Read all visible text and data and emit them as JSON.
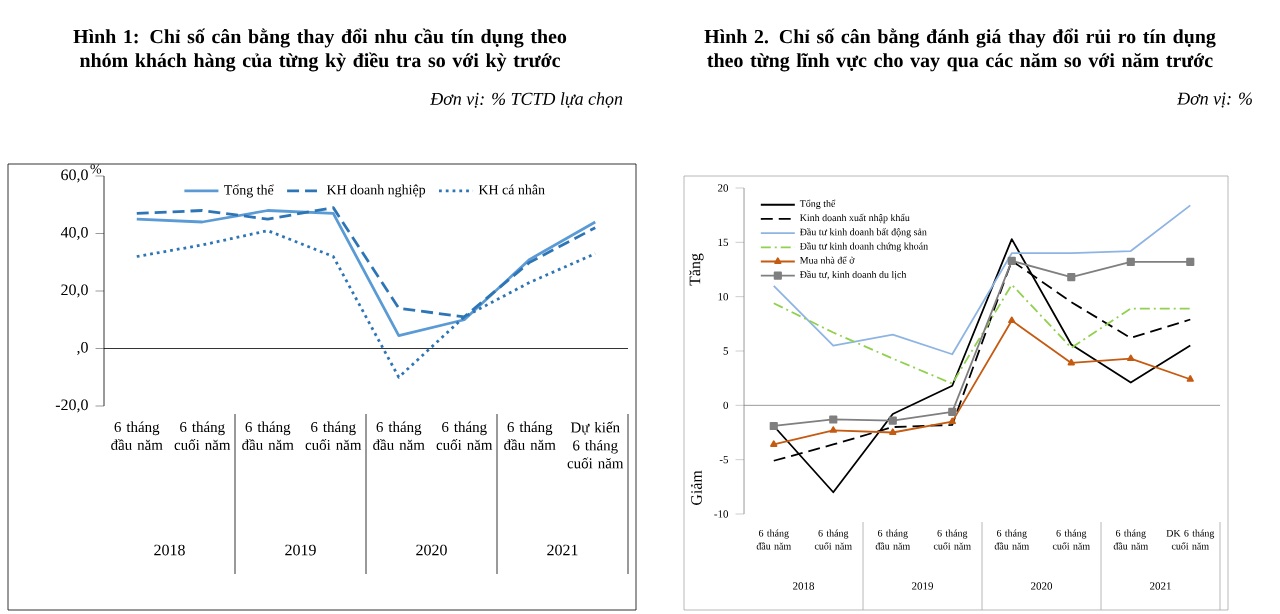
{
  "chart_data": [
    {
      "type": "line",
      "title": "Hình 1:  Chỉ số cân bằng thay đổi nhu cầu tín dụng theo nhóm khách hàng của từng kỳ điều tra so với kỳ trước",
      "subtitle": "Đơn vị: % TCTD lựa chọn",
      "ylabel": "%",
      "categories": [
        "6 tháng đầu năm",
        "6 tháng cuối năm",
        "6 tháng đầu năm",
        "6 tháng cuối năm",
        "6 tháng đầu năm",
        "6 tháng cuối năm",
        "6 tháng đầu năm",
        "Dự kiến 6 tháng cuối năm"
      ],
      "series": [
        {
          "name": "Tổng thể",
          "color": "#5b9bd5",
          "line_style": "solid",
          "values": [
            45,
            44,
            48,
            47,
            4.5,
            10,
            31,
            44
          ]
        },
        {
          "name": "KH doanh nghiệp",
          "color": "#2e75b6",
          "line_style": "dashed",
          "values": [
            47,
            48,
            45,
            49,
            14,
            11,
            30,
            42
          ]
        },
        {
          "name": "KH cá nhân",
          "color": "#2e75b6",
          "line_style": "dotted",
          "values": [
            32,
            36,
            41,
            32,
            -10,
            11,
            23,
            33
          ]
        }
      ],
      "ylim": [
        -20,
        60
      ],
      "yticks": [
        {
          "value": -20,
          "label": "-20,0"
        },
        {
          "value": 0,
          "label": ",0"
        },
        {
          "value": 20,
          "label": "20,0"
        },
        {
          "value": 40,
          "label": "40,0"
        },
        {
          "value": 60,
          "label": "60,0"
        }
      ],
      "legend": "top",
      "grid": false,
      "ref_lines": [
        {
          "axis": "y",
          "value": 0
        }
      ],
      "annotations": [
        "2018",
        "2019",
        "2020",
        "2021"
      ]
    },
    {
      "type": "line",
      "title": "Hình 2. Chỉ số cân bằng đánh giá thay đổi rủi ro tín dụng theo từng lĩnh vực cho vay qua các năm so với năm trước",
      "subtitle": "Đơn vị: %",
      "categories": [
        "6 tháng đầu năm",
        "6 tháng cuối năm",
        "6 tháng đầu năm",
        "6 tháng cuối năm",
        "6 tháng đầu năm",
        "6 tháng cuối năm",
        "6 tháng đầu năm",
        "DK 6 tháng cuối năm"
      ],
      "series": [
        {
          "name": "Tổng thể",
          "color": "#000000",
          "line_style": "solid",
          "values": [
            -1.9,
            -8.0,
            -0.8,
            1.8,
            15.3,
            5.6,
            2.1,
            5.5
          ]
        },
        {
          "name": "Kinh doanh xuất nhập khẩu",
          "color": "#000000",
          "line_style": "dashed",
          "values": [
            -5.1,
            -3.6,
            -2.0,
            -1.8,
            13.3,
            9.5,
            6.2,
            7.9
          ]
        },
        {
          "name": "Đầu tư kinh doanh bất động sản",
          "color": "#8eb4e3",
          "line_style": "solid",
          "values": [
            11.0,
            5.5,
            6.5,
            4.7,
            14.0,
            14.0,
            14.2,
            18.4
          ]
        },
        {
          "name": "Đầu tư kinh doanh chứng khoán",
          "color": "#92d050",
          "line_style": "dashdot",
          "values": [
            9.4,
            6.7,
            4.3,
            2.0,
            11.1,
            5.3,
            8.9,
            8.9
          ]
        },
        {
          "name": "Mua nhà để ở",
          "color": "#c55a11",
          "line_style": "solid",
          "marker": "triangle",
          "values": [
            -3.6,
            -2.3,
            -2.5,
            -1.5,
            7.8,
            3.9,
            4.3,
            2.4
          ]
        },
        {
          "name": "Đầu tư, kinh doanh du lịch",
          "color": "#7f7f7f",
          "line_style": "solid",
          "marker": "square",
          "values": [
            -1.9,
            -1.3,
            -1.4,
            -0.6,
            13.3,
            11.8,
            13.2,
            13.2
          ]
        }
      ],
      "ylim": [
        -10,
        20
      ],
      "yticks": [
        -10,
        -5,
        0,
        5,
        10,
        15,
        20
      ],
      "legend": "top left",
      "grid": false,
      "ref_lines": [
        {
          "axis": "y",
          "value": 0
        }
      ],
      "annotations": [
        "2018",
        "2019",
        "2020",
        "2021",
        "Tăng",
        "Giảm"
      ]
    }
  ]
}
